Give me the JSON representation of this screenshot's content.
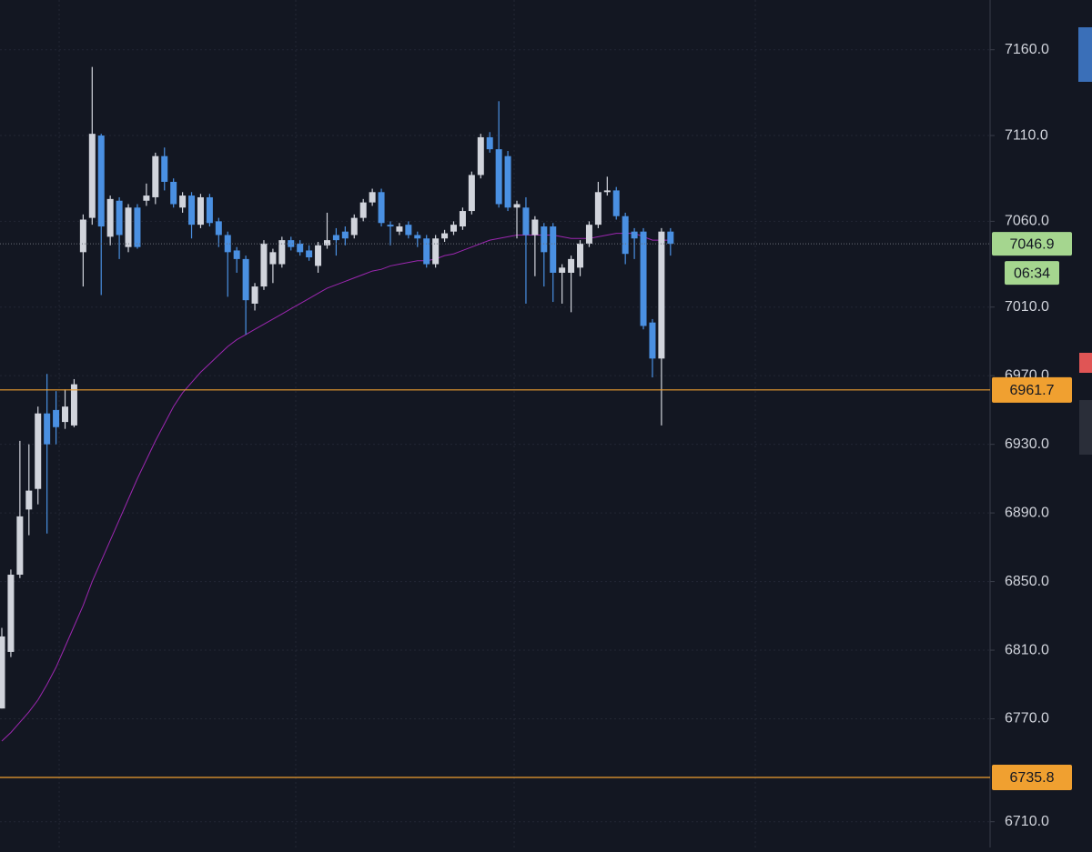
{
  "chart_data": {
    "type": "candlestick",
    "up_color": "#d1d4dc",
    "down_color": "#4a90e2",
    "ylim": [
      6695,
      7189
    ],
    "yticks": [
      {
        "value": 7160,
        "label": "7160.0"
      },
      {
        "value": 7110,
        "label": "7110.0"
      },
      {
        "value": 7060,
        "label": "7060.0"
      },
      {
        "value": 7010,
        "label": "7010.0"
      },
      {
        "value": 6970,
        "label": "6970.0"
      },
      {
        "value": 6930,
        "label": "6930.0"
      },
      {
        "value": 6890,
        "label": "6890.0"
      },
      {
        "value": 6850,
        "label": "6850.0"
      },
      {
        "value": 6810,
        "label": "6810.0"
      },
      {
        "value": 6770,
        "label": "6770.0"
      },
      {
        "value": 6710,
        "label": "6710.0"
      }
    ],
    "grid": true,
    "open": [
      6776,
      6809,
      6854,
      6892,
      6904,
      6948,
      6950,
      6943,
      6941,
      7042,
      7062,
      7110,
      7051,
      7072,
      7045,
      7068,
      7072,
      7074,
      7098,
      7083,
      7068,
      7075,
      7058,
      7074,
      7060,
      7052,
      7043,
      7038,
      7012,
      7022,
      7035,
      7035,
      7049,
      7047,
      7043,
      7034,
      7046,
      7052,
      7054,
      7052,
      7062,
      7071,
      7077,
      7058,
      7054,
      7058,
      7052,
      7050,
      7035,
      7050,
      7054,
      7057,
      7066,
      7087,
      7109,
      7102,
      7098,
      7068,
      7068,
      7052,
      7057,
      7057,
      7030,
      7030,
      7033,
      7047,
      7058,
      7077,
      7078,
      7063,
      7054,
      7054,
      7001,
      6980,
      7054
    ],
    "high": [
      6823,
      6857,
      6932,
      6930,
      6952,
      6971,
      6961,
      6962,
      6968,
      7064,
      7150,
      7111,
      7075,
      7074,
      7070,
      7070,
      7082,
      7100,
      7103,
      7085,
      7077,
      7077,
      7076,
      7076,
      7062,
      7054,
      7045,
      7040,
      7024,
      7049,
      7044,
      7051,
      7051,
      7049,
      7046,
      7048,
      7065,
      7056,
      7057,
      7064,
      7073,
      7079,
      7079,
      7060,
      7059,
      7060,
      7054,
      7052,
      7052,
      7055,
      7060,
      7068,
      7089,
      7111,
      7112,
      7130,
      7101,
      7072,
      7074,
      7063,
      7059,
      7059,
      7035,
      7040,
      7049,
      7060,
      7083,
      7086,
      7080,
      7065,
      7056,
      7056,
      7003,
      7056,
      7056
    ],
    "low": [
      6776,
      6806,
      6852,
      6877,
      6895,
      6878,
      6930,
      6939,
      6940,
      7022,
      7058,
      7017,
      7046,
      7038,
      7042,
      7044,
      7069,
      7070,
      7078,
      7068,
      7065,
      7050,
      7056,
      7057,
      7045,
      7016,
      7030,
      6994,
      7008,
      7020,
      7024,
      7033,
      7043,
      7040,
      7037,
      7030,
      7044,
      7040,
      7046,
      7050,
      7060,
      7069,
      7057,
      7046,
      7052,
      7050,
      7045,
      7033,
      7033,
      7048,
      7052,
      7055,
      7064,
      7085,
      7100,
      7068,
      7066,
      7050,
      7012,
      7028,
      7022,
      7013,
      7012,
      7007,
      7028,
      7045,
      7056,
      7075,
      7061,
      7035,
      7038,
      6997,
      6969,
      6941,
      7040
    ],
    "close": [
      6818,
      6854,
      6888,
      6903,
      6948,
      6930,
      6940,
      6952,
      6965,
      7061,
      7111,
      7057,
      7073,
      7052,
      7068,
      7045,
      7075,
      7098,
      7083,
      7070,
      7075,
      7058,
      7074,
      7059,
      7052,
      7042,
      7038,
      7014,
      7022,
      7047,
      7042,
      7049,
      7045,
      7042,
      7039,
      7046,
      7049,
      7049,
      7050,
      7062,
      7071,
      7077,
      7059,
      7057,
      7057,
      7052,
      7050,
      7035,
      7050,
      7053,
      7058,
      7066,
      7087,
      7109,
      7102,
      7070,
      7068,
      7070,
      7052,
      7061,
      7042,
      7030,
      7033,
      7038,
      7047,
      7058,
      7077,
      7078,
      7063,
      7041,
      7050,
      6999,
      6980,
      7054,
      7046.9
    ],
    "ma": {
      "color": "#9c27b0",
      "values": [
        6757,
        6762,
        6768,
        6774,
        6781,
        6790,
        6800,
        6812,
        6824,
        6836,
        6850,
        6862,
        6874,
        6886,
        6898,
        6910,
        6921,
        6932,
        6942,
        6952,
        6960,
        6966,
        6972,
        6977,
        6982,
        6987,
        6991,
        6994,
        6997,
        7000,
        7003,
        7006,
        7009,
        7012,
        7015,
        7018,
        7021,
        7023,
        7025,
        7027,
        7029,
        7031,
        7032,
        7034,
        7035,
        7036,
        7037,
        7037,
        7038,
        7040,
        7041,
        7043,
        7045,
        7047,
        7049,
        7050,
        7051,
        7052,
        7052,
        7052,
        7052,
        7052,
        7051,
        7050,
        7050,
        7050,
        7051,
        7052,
        7053,
        7053,
        7053,
        7051,
        7049,
        7049,
        7049
      ]
    },
    "last_price_color": "#a5d68f",
    "countdown": "06:34",
    "price_lines": [
      {
        "value": 6961.7,
        "color": "#f0a030"
      },
      {
        "value": 6735.8,
        "color": "#f0a030"
      }
    ]
  }
}
